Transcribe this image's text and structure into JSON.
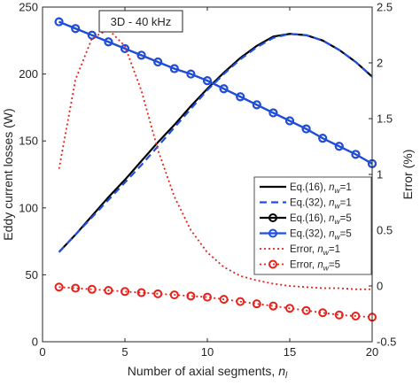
{
  "chart_data": {
    "type": "line",
    "annotation": "3D - 40 kHz",
    "xlabel": "Number of axial segments, ",
    "xlabel_sub": "nl",
    "ylabel_left": "Eddy current losses (W)",
    "ylabel_right": "Error (%)",
    "x_axis": {
      "lim": [
        0,
        20
      ],
      "ticks": [
        0,
        5,
        10,
        15,
        20
      ],
      "tick_labels": [
        "0",
        "5",
        "10",
        "15",
        "20"
      ]
    },
    "y_axis_left": {
      "lim": [
        0,
        250
      ],
      "ticks": [
        0,
        50,
        100,
        150,
        200,
        250
      ],
      "tick_labels": [
        "0",
        "50",
        "100",
        "150",
        "200",
        "250"
      ]
    },
    "y_axis_right": {
      "lim": [
        -0.5,
        2.5
      ],
      "ticks": [
        -0.5,
        0,
        0.5,
        1,
        1.5,
        2,
        2.5
      ],
      "tick_labels": [
        "-0.5",
        "0",
        "0.5",
        "1",
        "1.5",
        "2",
        "2.5"
      ]
    },
    "grid": false,
    "legend_position": "center-right",
    "series": [
      {
        "name": "Eq.(16), nw=1",
        "legend": {
          "prefix": "Eq.(16), ",
          "var": "n",
          "sub": "w",
          "suffix": "=1"
        },
        "axis": "left",
        "color": "#000000",
        "dash": "",
        "marker": "none",
        "x": [
          1,
          2,
          3,
          4,
          5,
          6,
          7,
          8,
          9,
          10,
          11,
          12,
          13,
          14,
          15,
          16,
          17,
          18,
          19,
          20
        ],
        "y": [
          67,
          80,
          94,
          108,
          121,
          135,
          149,
          162,
          176,
          189,
          201,
          212,
          221,
          228,
          230,
          229,
          225,
          218,
          209,
          198
        ]
      },
      {
        "name": "Eq.(32), nw=1",
        "legend": {
          "prefix": "Eq.(32), ",
          "var": "n",
          "sub": "w",
          "suffix": "=1"
        },
        "axis": "left",
        "color": "#1f4fe0",
        "dash": "8,5",
        "marker": "none",
        "x": [
          1,
          2,
          3,
          4,
          5,
          6,
          7,
          8,
          9,
          10,
          11,
          12,
          13,
          14,
          15,
          16,
          17,
          18,
          19,
          20
        ],
        "y": [
          67,
          80,
          93,
          106,
          119,
          132,
          146,
          160,
          174,
          188,
          200,
          211,
          220,
          227,
          230,
          229,
          225,
          218,
          209,
          198
        ]
      },
      {
        "name": "Eq.(16), nw=5",
        "legend": {
          "prefix": "Eq.(16), ",
          "var": "n",
          "sub": "w",
          "suffix": "=5"
        },
        "axis": "left",
        "color": "#000000",
        "dash": "",
        "marker": "circle",
        "x": [
          1,
          2,
          3,
          4,
          5,
          6,
          7,
          8,
          9,
          10,
          11,
          12,
          13,
          14,
          15,
          16,
          17,
          18,
          19,
          20
        ],
        "y": [
          239,
          234,
          229,
          224,
          219,
          214,
          209,
          204,
          200,
          195,
          189,
          183,
          177,
          171,
          165,
          159,
          152,
          146,
          140,
          133
        ]
      },
      {
        "name": "Eq.(32), nw=5",
        "legend": {
          "prefix": "Eq.(32), ",
          "var": "n",
          "sub": "w",
          "suffix": "=5"
        },
        "axis": "left",
        "color": "#1f4fe0",
        "dash": "",
        "marker": "circle",
        "x": [
          1,
          2,
          3,
          4,
          5,
          6,
          7,
          8,
          9,
          10,
          11,
          12,
          13,
          14,
          15,
          16,
          17,
          18,
          19,
          20
        ],
        "y": [
          239,
          234,
          229,
          224,
          219,
          214,
          209,
          204,
          200,
          195,
          189,
          183,
          177,
          171,
          165,
          159,
          152,
          146,
          140,
          133
        ]
      },
      {
        "name": "Error, nw=1",
        "legend": {
          "prefix": "Error, ",
          "var": "n",
          "sub": "w",
          "suffix": "=1"
        },
        "axis": "right",
        "color": "#e8201a",
        "dash": "2,3",
        "marker": "none",
        "x": [
          1,
          2,
          3,
          4,
          5,
          6,
          7,
          8,
          9,
          10,
          11,
          12,
          13,
          14,
          15,
          16,
          17,
          18,
          19,
          20
        ],
        "y": [
          1.05,
          1.85,
          2.22,
          2.3,
          2.15,
          1.75,
          1.22,
          0.8,
          0.5,
          0.3,
          0.17,
          0.09,
          0.05,
          0.02,
          0.0,
          -0.01,
          -0.02,
          -0.02,
          -0.03,
          -0.03
        ]
      },
      {
        "name": "Error, nw=5",
        "legend": {
          "prefix": "Error, ",
          "var": "n",
          "sub": "w",
          "suffix": "=5"
        },
        "axis": "right",
        "color": "#e8201a",
        "dash": "2,3",
        "marker": "circle",
        "x": [
          1,
          2,
          3,
          4,
          5,
          6,
          7,
          8,
          9,
          10,
          11,
          12,
          13,
          14,
          15,
          16,
          17,
          18,
          19,
          20
        ],
        "y": [
          -0.01,
          -0.02,
          -0.03,
          -0.04,
          -0.05,
          -0.06,
          -0.07,
          -0.08,
          -0.09,
          -0.1,
          -0.12,
          -0.14,
          -0.16,
          -0.18,
          -0.2,
          -0.22,
          -0.24,
          -0.26,
          -0.27,
          -0.28
        ]
      }
    ]
  }
}
